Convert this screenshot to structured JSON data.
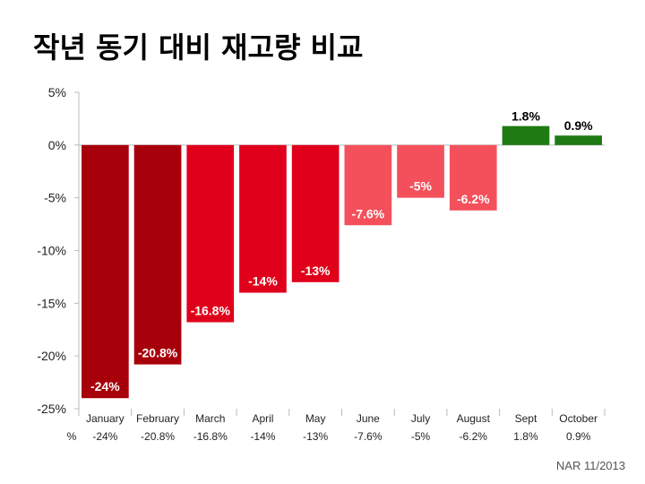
{
  "title": "작년 동기 대비 재고량 비교",
  "source": "NAR 11/2013",
  "chart_data": {
    "type": "bar",
    "title": "작년 동기 대비 재고량 비교",
    "categories": [
      "January",
      "February",
      "March",
      "April",
      "May",
      "June",
      "July",
      "August",
      "Sept",
      "October"
    ],
    "values": [
      -24,
      -20.8,
      -16.8,
      -14,
      -13,
      -7.6,
      -5,
      -6.2,
      1.8,
      0.9
    ],
    "data_labels": [
      "-24%",
      "-20.8%",
      "-16.8%",
      "-14%",
      "-13%",
      "-7.6%",
      "-5%",
      "-6.2%",
      "1.8%",
      "0.9%"
    ],
    "row_label": "%",
    "row_values": [
      "-24%",
      "-20.8%",
      "-16.8%",
      "-14%",
      "-13%",
      "-7.6%",
      "-5%",
      "-6.2%",
      "1.8%",
      "0.9%"
    ],
    "ylim": [
      -25,
      5
    ],
    "yticks": [
      5,
      0,
      -5,
      -10,
      -15,
      -20,
      -25
    ],
    "ytick_labels": [
      "5%",
      "0%",
      "-5%",
      "-10%",
      "-15%",
      "-20%",
      "-25%"
    ],
    "bar_colors": [
      "#a8000a",
      "#a8000a",
      "#e0001b",
      "#e0001b",
      "#e0001b",
      "#f4505c",
      "#f4505c",
      "#f4505c",
      "#1f7a14",
      "#1f7a14"
    ],
    "label_colors": [
      "#ffffff",
      "#ffffff",
      "#ffffff",
      "#ffffff",
      "#ffffff",
      "#ffffff",
      "#ffffff",
      "#ffffff",
      "#000000",
      "#000000"
    ],
    "grid": false,
    "legend": "none"
  }
}
